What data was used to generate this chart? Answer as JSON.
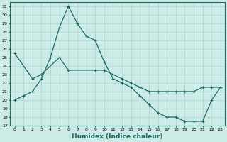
{
  "xlabel": "Humidex (Indice chaleur)",
  "background_color": "#cceae6",
  "line_color": "#1a6b5e",
  "grid_color": "#a8d5ce",
  "xlim": [
    -0.5,
    23.5
  ],
  "ylim": [
    17,
    31.5
  ],
  "yticks": [
    17,
    18,
    19,
    20,
    21,
    22,
    23,
    24,
    25,
    26,
    27,
    28,
    29,
    30,
    31
  ],
  "xticks": [
    0,
    1,
    2,
    3,
    4,
    5,
    6,
    7,
    8,
    9,
    10,
    11,
    12,
    13,
    14,
    15,
    16,
    17,
    18,
    19,
    20,
    21,
    22,
    23
  ],
  "curve1_x": [
    0,
    1,
    2,
    3,
    4,
    5,
    6,
    7,
    8,
    9,
    10,
    11,
    12,
    13,
    14,
    15,
    16,
    17,
    18,
    19,
    20,
    21,
    22,
    23
  ],
  "curve1_y": [
    20.0,
    20.5,
    21.0,
    22.5,
    25.0,
    28.5,
    31.0,
    29.0,
    27.5,
    27.0,
    24.5,
    22.5,
    22.0,
    21.5,
    20.5,
    19.5,
    18.5,
    18.0,
    18.0,
    17.5,
    17.5,
    17.5,
    20.0,
    21.5
  ],
  "curve2_x": [
    0,
    2,
    3,
    5,
    6,
    9,
    10,
    11,
    12,
    13,
    14,
    15,
    16,
    17,
    18,
    19,
    20,
    21,
    22,
    23
  ],
  "curve2_y": [
    25.5,
    22.5,
    23.0,
    25.0,
    23.5,
    23.5,
    23.5,
    23.0,
    22.5,
    22.0,
    21.5,
    21.0,
    21.0,
    21.0,
    21.0,
    21.0,
    21.0,
    21.5,
    21.5,
    21.5
  ]
}
